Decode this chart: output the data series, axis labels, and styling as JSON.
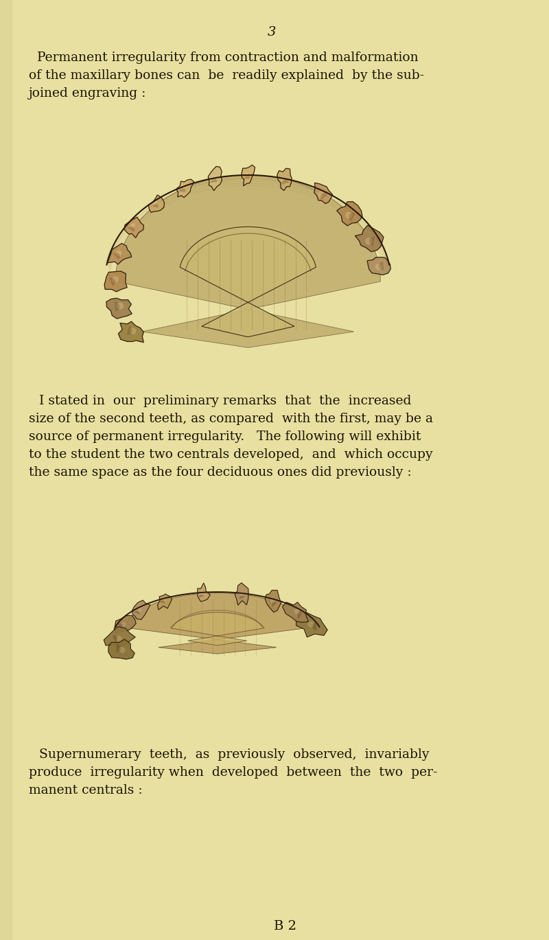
{
  "background_color": "#e8e0a0",
  "text_color": "#1a1408",
  "page_number": "3",
  "paragraph1_lines": [
    "Permanent irregularity from contraction and malformation",
    "of the maxillary bones can  be  readily explained  by the sub-",
    "joined engraving :"
  ],
  "paragraph1_indent": true,
  "paragraph2_lines": [
    "I stated in  our  preliminary remarks  that  the  increased",
    "size of the second teeth, as compared  with the first, may be a",
    "source of permanent irregularity.   The following will exhibit",
    "to the student the two centrals developed,  and  which occupy",
    "the same space as the four deciduous ones did previously :"
  ],
  "paragraph2_indent": true,
  "paragraph3_lines": [
    "Supernumerary  teeth,  as  previously  observed,  invariably",
    "produce  irregularity when  developed  between  the  two  per-",
    "manent centrals :"
  ],
  "paragraph3_indent": true,
  "footer_text": "B 2",
  "tooth_dark": "#2a1a0a",
  "tooth_mid": "#6b5030",
  "tooth_light": "#c8b878",
  "tooth_pale": "#ddd0a0",
  "bone_color": "#b09050",
  "shadow_color": "#807040"
}
